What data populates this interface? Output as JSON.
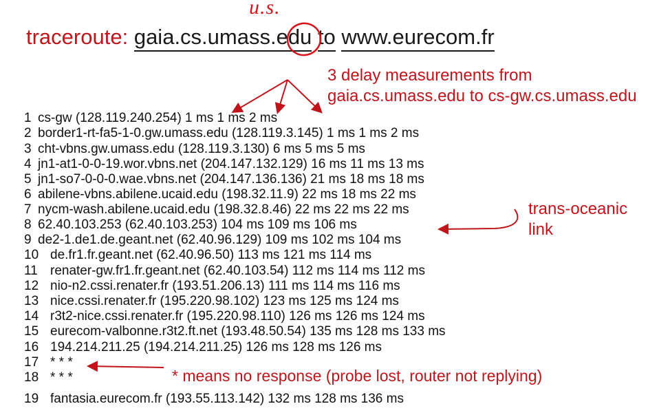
{
  "handwritten": {
    "us_label": "u.s."
  },
  "title": {
    "keyword": "traceroute:",
    "source": "gaia.cs.umass.edu",
    "connector": "to",
    "dest": "www.eurecom.fr"
  },
  "annotations": {
    "delay_line1": "3 delay measurements from",
    "delay_line2": "gaia.cs.umass.edu to cs-gw.cs.umass.edu",
    "ocean_line1": "trans-oceanic",
    "ocean_line2": "link",
    "no_response": "* means no response (probe lost, router not replying)"
  },
  "hops": [
    {
      "n": "1",
      "text": "cs-gw (128.119.240.254)  1 ms  1 ms  2 ms"
    },
    {
      "n": "2",
      "text": "border1-rt-fa5-1-0.gw.umass.edu (128.119.3.145)  1 ms  1 ms  2 ms"
    },
    {
      "n": "3",
      "text": "cht-vbns.gw.umass.edu (128.119.3.130)  6 ms 5 ms 5 ms"
    },
    {
      "n": "4",
      "text": "jn1-at1-0-0-19.wor.vbns.net (204.147.132.129)  16 ms 11 ms 13 ms"
    },
    {
      "n": "5",
      "text": "jn1-so7-0-0-0.wae.vbns.net (204.147.136.136)  21 ms 18 ms 18 ms"
    },
    {
      "n": "6",
      "text": "abilene-vbns.abilene.ucaid.edu (198.32.11.9)  22 ms  18 ms  22 ms"
    },
    {
      "n": "7",
      "text": "nycm-wash.abilene.ucaid.edu (198.32.8.46)  22 ms  22 ms  22 ms"
    },
    {
      "n": "8",
      "text": "62.40.103.253 (62.40.103.253)  104 ms 109 ms 106 ms"
    },
    {
      "n": "9",
      "text": "de2-1.de1.de.geant.net (62.40.96.129)  109 ms 102 ms 104 ms"
    },
    {
      "n": "10",
      "text": "de.fr1.fr.geant.net (62.40.96.50)  113 ms 121 ms 114 ms"
    },
    {
      "n": "11",
      "text": "renater-gw.fr1.fr.geant.net (62.40.103.54)  112 ms  114 ms  112 ms"
    },
    {
      "n": "12",
      "text": "nio-n2.cssi.renater.fr (193.51.206.13)  111 ms  114 ms  116 ms"
    },
    {
      "n": "13",
      "text": "nice.cssi.renater.fr (195.220.98.102)  123 ms  125 ms  124 ms"
    },
    {
      "n": "14",
      "text": "r3t2-nice.cssi.renater.fr (195.220.98.110)  126 ms  126 ms  124 ms"
    },
    {
      "n": "15",
      "text": "eurecom-valbonne.r3t2.ft.net (193.48.50.54)  135 ms  128 ms  133 ms"
    },
    {
      "n": "16",
      "text": "194.214.211.25 (194.214.211.25)  126 ms  128 ms  126 ms"
    },
    {
      "n": "17",
      "text": "* * *"
    },
    {
      "n": "18",
      "text": "* * *"
    },
    {
      "n": "19",
      "text": "fantasia.eurecom.fr (193.55.113.142)  132 ms  128 ms  136 ms"
    }
  ],
  "colors": {
    "accent": "#c0141b",
    "handwriting": "#d4151c",
    "text": "#111111"
  }
}
